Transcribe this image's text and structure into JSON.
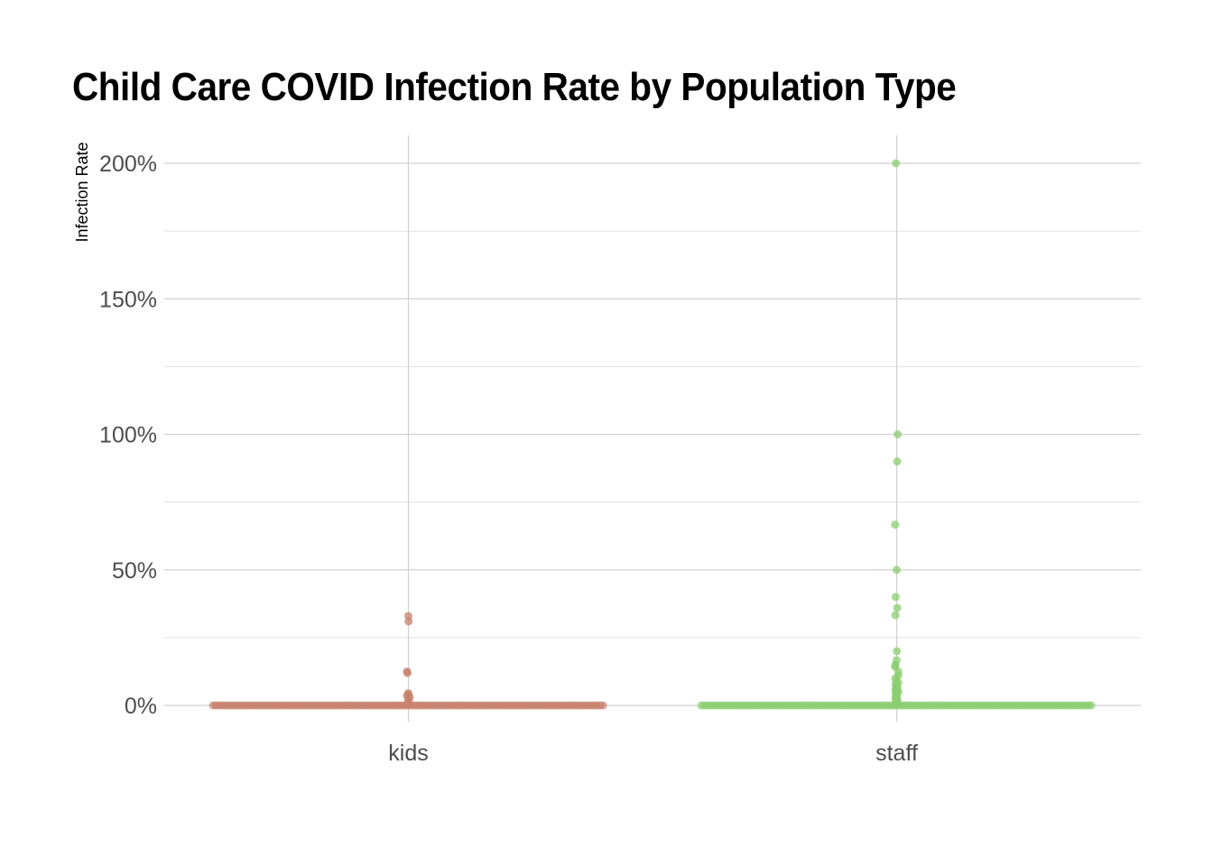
{
  "chart_data": {
    "type": "scatter",
    "title": "Child Care COVID Infection Rate by Population Type",
    "xlabel": "",
    "ylabel": "Infection Rate",
    "ylim": [
      -0.06,
      2.1
    ],
    "y_ticks": [
      0,
      0.5,
      1.0,
      1.5,
      2.0
    ],
    "y_tick_labels": [
      "0%",
      "50%",
      "100%",
      "150%",
      "200%"
    ],
    "categories": [
      "kids",
      "staff"
    ],
    "grid": true,
    "legend": "none",
    "series": [
      {
        "category": "kids",
        "color": "#c8806c",
        "jitter_width": 0.8,
        "zero_band": true,
        "outliers": [
          0.33,
          0.31,
          0.125,
          0.12,
          0.045,
          0.04,
          0.035,
          0.03,
          0.02,
          0.015
        ]
      },
      {
        "category": "staff",
        "color": "#8acd6f",
        "jitter_width": 0.8,
        "zero_band": true,
        "outliers": [
          2.0,
          1.0,
          0.9,
          0.667,
          0.5,
          0.4,
          0.36,
          0.333,
          0.2,
          0.167,
          0.15,
          0.143,
          0.125,
          0.111,
          0.1,
          0.091,
          0.083,
          0.077,
          0.071,
          0.067,
          0.063,
          0.059,
          0.056,
          0.05,
          0.045,
          0.04,
          0.035,
          0.03,
          0.025,
          0.02,
          0.015,
          0.01
        ]
      }
    ]
  }
}
